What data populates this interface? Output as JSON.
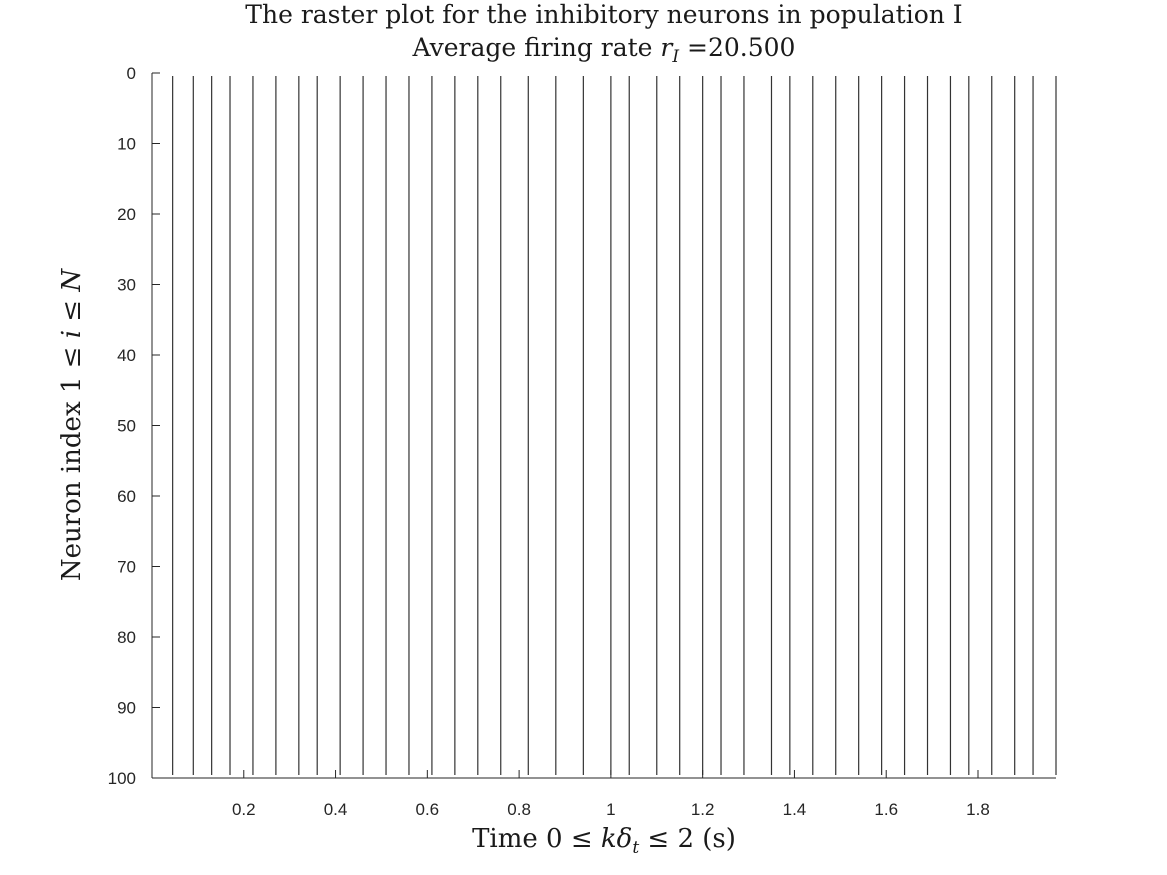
{
  "chart_data": {
    "type": "scatter",
    "subtype": "raster",
    "title": "The raster plot for the inhibitory neurons in population I",
    "subtitle": {
      "prefix": "Average firing rate ",
      "var": "r",
      "sub": "I",
      "suffix": " =20.500"
    },
    "xlabel": {
      "prefix": "Time 0 ≤ ",
      "var1": "k",
      "var2": "δ",
      "sub": "t",
      "suffix": " ≤ 2 (s)"
    },
    "ylabel": {
      "prefix": "Neuron index 1 ≤ ",
      "var1": "i",
      "mid": " ≤ ",
      "var2": "N"
    },
    "xlim": [
      0,
      1.97
    ],
    "ylim": [
      0,
      100
    ],
    "y_reversed": true,
    "xticks": [
      0.2,
      0.4,
      0.6,
      0.8,
      1,
      1.2,
      1.4,
      1.6,
      1.8
    ],
    "xtick_labels": [
      "0.2",
      "0.4",
      "0.6",
      "0.8",
      "1",
      "1.2",
      "1.4",
      "1.6",
      "1.8"
    ],
    "yticks": [
      0,
      10,
      20,
      30,
      40,
      50,
      60,
      70,
      80,
      90,
      100
    ],
    "ytick_labels": [
      "0",
      "10",
      "20",
      "30",
      "40",
      "50",
      "60",
      "70",
      "80",
      "90",
      "100"
    ],
    "neuron_range": [
      1,
      100
    ],
    "spike_times": [
      0.045,
      0.09,
      0.13,
      0.17,
      0.22,
      0.27,
      0.32,
      0.36,
      0.41,
      0.46,
      0.51,
      0.56,
      0.61,
      0.66,
      0.71,
      0.76,
      0.82,
      0.88,
      0.94,
      1.0,
      1.04,
      1.1,
      1.15,
      1.2,
      1.24,
      1.29,
      1.35,
      1.39,
      1.44,
      1.49,
      1.54,
      1.59,
      1.64,
      1.69,
      1.74,
      1.78,
      1.83,
      1.88,
      1.92,
      1.97
    ],
    "grid": false,
    "legend": "none",
    "spike_color": "#333333"
  }
}
